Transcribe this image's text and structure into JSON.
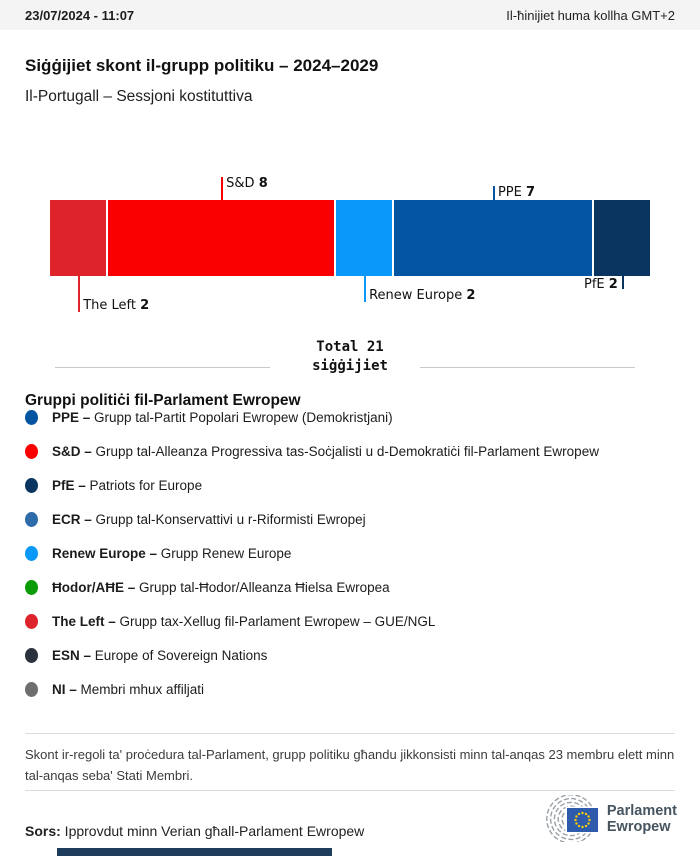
{
  "header": {
    "datetime": "23/07/2024 - 11:07",
    "timezone_note": "Il-ħinijiet huma kollha GMT+2"
  },
  "title": "Siġġijiet skont il-grupp politiku – 2024–2029",
  "subtitle": "Il-Portugall – Sessjoni kostituttiva",
  "chart_data": {
    "type": "bar",
    "title": "Siġġijiet skont il-grupp politiku – 2024–2029",
    "subtitle": "Il-Portugall – Sessjoni kostituttiva",
    "total_seats": 21,
    "total_line1": "Total 21",
    "total_line2": "siġġijiet",
    "segments": [
      {
        "name": "The Left",
        "seats": 2,
        "color": "#df232b",
        "label_position": "below"
      },
      {
        "name": "S&D",
        "seats": 8,
        "color": "#fb0000",
        "label_position": "above"
      },
      {
        "name": "Renew Europe",
        "seats": 2,
        "color": "#0a99f8",
        "label_position": "below"
      },
      {
        "name": "PPE",
        "seats": 7,
        "color": "#0455a1",
        "label_position": "above"
      },
      {
        "name": "PfE",
        "seats": 2,
        "color": "#0a3560",
        "label_position": "below"
      }
    ]
  },
  "legend": {
    "heading": "Gruppi politiċi fil-Parlament Ewropew",
    "items": [
      {
        "abbr": "PPE –",
        "desc": "Grupp tal-Partit Popolari Ewropew (Demokristjani)",
        "color": "#0455a1"
      },
      {
        "abbr": "S&D –",
        "desc": "Grupp tal-Alleanza Progressiva tas-Soċjalisti u d-Demokratiċi fil-Parlament Ewropew",
        "color": "#fb0000"
      },
      {
        "abbr": "PfE –",
        "desc": "Patriots for Europe",
        "color": "#0a3560"
      },
      {
        "abbr": "ECR –",
        "desc": "Grupp tal-Konservattivi u r-Riformisti Ewropej",
        "color": "#2d6ca8"
      },
      {
        "abbr": "Renew Europe –",
        "desc": "Grupp Renew Europe",
        "color": "#0a99f8"
      },
      {
        "abbr": "Ħodor/AĦE –",
        "desc": "Grupp tal-Ħodor/Alleanza Ħielsa Ewropea",
        "color": "#0a9b06"
      },
      {
        "abbr": "The Left –",
        "desc": "Grupp tax-Xellug fil-Parlament Ewropew – GUE/NGL",
        "color": "#df232b"
      },
      {
        "abbr": "ESN –",
        "desc": "Europe of Sovereign Nations",
        "color": "#2a333d"
      },
      {
        "abbr": "NI –",
        "desc": "Membri mhux affiljati",
        "color": "#6e6e6e"
      }
    ]
  },
  "footnote": "Skont ir-regoli ta' proċedura tal-Parlament, grupp politiku għandu jikkonsisti minn tal-anqas 23 membru elett minn tal-anqas seba' Stati Membri.",
  "source": {
    "label": "Sors:",
    "text": " Ipprovdut minn Verian għall-Parlament Ewropew"
  },
  "logo": {
    "line1": "Parlament",
    "line2": "Ewropew"
  }
}
